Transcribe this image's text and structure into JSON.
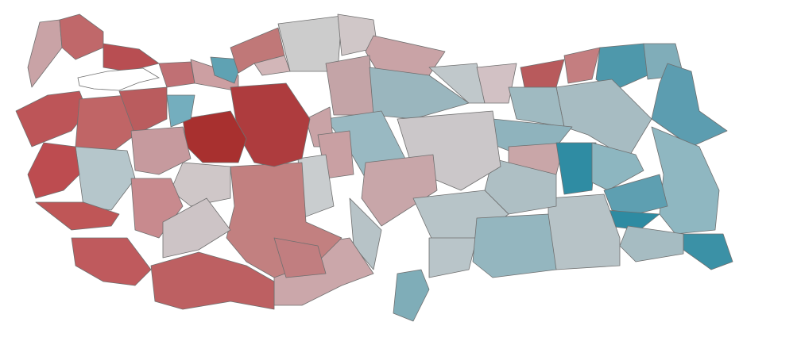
{
  "map": {
    "type": "choropleth",
    "colors": {
      "background": "#ffffff",
      "border": "#6f6f6f",
      "high_red": "#a8302f",
      "neutral": "#cccccc",
      "high_teal": "#2e8ba2"
    },
    "regions": [
      {
        "fill": "#c9a3a6"
      },
      {
        "fill": "#c0686a"
      },
      {
        "fill": "#b84e52"
      },
      {
        "fill": "#bd5558"
      },
      {
        "fill": "#c06566"
      },
      {
        "fill": "#ba5c5e"
      },
      {
        "fill": "#c07074"
      },
      {
        "fill": "#cc9fa2"
      },
      {
        "fill": "#5fa2b3"
      },
      {
        "fill": "#c07878"
      },
      {
        "fill": "#cccccc"
      },
      {
        "fill": "#d0c7c8"
      },
      {
        "fill": "#c9a3a6"
      },
      {
        "fill": "#c4a4a7"
      },
      {
        "fill": "#9ab6be"
      },
      {
        "fill": "#c0c8cb"
      },
      {
        "fill": "#d2c1c4"
      },
      {
        "fill": "#b85a5c"
      },
      {
        "fill": "#c47e80"
      },
      {
        "fill": "#4e98ab"
      },
      {
        "fill": "#80adb9"
      },
      {
        "fill": "#5c9db0"
      },
      {
        "fill": "#a7bcc2"
      },
      {
        "fill": "#9fbac1"
      },
      {
        "fill": "#8fb3bd"
      },
      {
        "fill": "#c9a6a8"
      },
      {
        "fill": "#2f8ca3"
      },
      {
        "fill": "#8db6c0"
      },
      {
        "fill": "#8fb7c1"
      },
      {
        "fill": "#5e9fb1"
      },
      {
        "fill": "#2e8ba2"
      },
      {
        "fill": "#3b91a6"
      },
      {
        "fill": "#a6bcc2"
      },
      {
        "fill": "#b7c3c7"
      },
      {
        "fill": "#aebfc4"
      },
      {
        "fill": "#cbc7c9"
      },
      {
        "fill": "#99b9c2"
      },
      {
        "fill": "#c9a3a6"
      },
      {
        "fill": "#c9a0a3"
      },
      {
        "fill": "#c8a6a9"
      },
      {
        "fill": "#b7c3c7"
      },
      {
        "fill": "#b7c4c8"
      },
      {
        "fill": "#b9c5c9"
      },
      {
        "fill": "#94b6bf"
      },
      {
        "fill": "#7fadb8"
      },
      {
        "fill": "#cba7aa"
      },
      {
        "fill": "#c9cdcf"
      },
      {
        "fill": "#c28080"
      },
      {
        "fill": "#c17e80"
      },
      {
        "fill": "#ae3c3e"
      },
      {
        "fill": "#a8302f"
      },
      {
        "fill": "#74aebe"
      },
      {
        "fill": "#c69a9e"
      },
      {
        "fill": "#cfc7c8"
      },
      {
        "fill": "#b5c6cb"
      },
      {
        "fill": "#bd4c50"
      },
      {
        "fill": "#bf5657"
      },
      {
        "fill": "#c88a8e"
      },
      {
        "fill": "#bf5a5d"
      },
      {
        "fill": "#cdc4c6"
      },
      {
        "fill": "#bd6062"
      },
      {
        "fill": "#d2b6b8"
      }
    ]
  }
}
